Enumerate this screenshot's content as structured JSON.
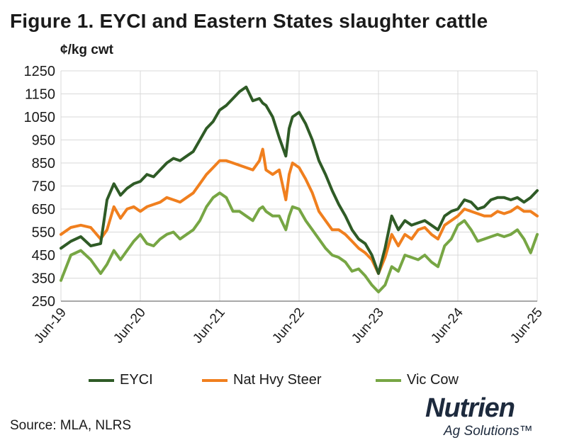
{
  "title": "Figure 1. EYCI and Eastern States slaughter cattle",
  "unit_label": "¢/kg cwt",
  "source": "Source:  MLA, NLRS",
  "logo": {
    "name": "Nutrien",
    "subtitle": "Ag Solutions™"
  },
  "colors": {
    "EYCI": "#2f5b26",
    "Nat Hvy Steer": "#f07f1e",
    "Vic Cow": "#77a644",
    "grid": "#d9d9d9",
    "axis": "#8c8c8c"
  },
  "chart_data": {
    "type": "line",
    "title": "Figure 1. EYCI and Eastern States slaughter cattle",
    "ylabel": "¢/kg cwt",
    "xlabel": "",
    "ylim": [
      250,
      1250
    ],
    "yticks": [
      250,
      350,
      450,
      550,
      650,
      750,
      850,
      950,
      1050,
      1150,
      1250
    ],
    "xlim": [
      2019.5,
      2025.5
    ],
    "xticks": [
      {
        "x": 2019.5,
        "label": "Jun-19"
      },
      {
        "x": 2020.5,
        "label": "Jun-20"
      },
      {
        "x": 2021.5,
        "label": "Jun-21"
      },
      {
        "x": 2022.5,
        "label": "Jun-22"
      },
      {
        "x": 2023.5,
        "label": "Jun-23"
      },
      {
        "x": 2024.5,
        "label": "Jun-24"
      },
      {
        "x": 2025.5,
        "label": "Jun-25"
      }
    ],
    "grid": true,
    "legend_position": "bottom",
    "series": [
      {
        "name": "EYCI",
        "x": [
          2019.5,
          2019.625,
          2019.75,
          2019.875,
          2020.0,
          2020.08,
          2020.167,
          2020.25,
          2020.333,
          2020.417,
          2020.5,
          2020.583,
          2020.667,
          2020.75,
          2020.833,
          2020.917,
          2021.0,
          2021.083,
          2021.167,
          2021.25,
          2021.333,
          2021.417,
          2021.5,
          2021.583,
          2021.667,
          2021.75,
          2021.833,
          2021.917,
          2022.0,
          2022.042,
          2022.083,
          2022.167,
          2022.25,
          2022.333,
          2022.375,
          2022.417,
          2022.5,
          2022.583,
          2022.667,
          2022.75,
          2022.833,
          2022.917,
          2023.0,
          2023.083,
          2023.167,
          2023.25,
          2023.333,
          2023.417,
          2023.5,
          2023.583,
          2023.667,
          2023.75,
          2023.833,
          2023.917,
          2024.0,
          2024.083,
          2024.167,
          2024.25,
          2024.333,
          2024.417,
          2024.5,
          2024.583,
          2024.667,
          2024.75,
          2024.833,
          2024.917,
          2025.0,
          2025.083,
          2025.167,
          2025.25,
          2025.333,
          2025.417,
          2025.5
        ],
        "values": [
          480,
          510,
          530,
          490,
          500,
          690,
          760,
          710,
          740,
          760,
          770,
          800,
          790,
          820,
          850,
          870,
          860,
          880,
          900,
          950,
          1000,
          1030,
          1080,
          1100,
          1130,
          1160,
          1180,
          1120,
          1130,
          1110,
          1100,
          1050,
          960,
          880,
          1000,
          1050,
          1070,
          1020,
          950,
          860,
          800,
          730,
          670,
          620,
          560,
          520,
          500,
          450,
          370,
          480,
          620,
          560,
          600,
          580,
          590,
          600,
          580,
          560,
          620,
          640,
          650,
          690,
          680,
          650,
          660,
          690,
          700,
          700,
          690,
          700,
          680,
          700,
          730
        ]
      },
      {
        "name": "Nat Hvy Steer",
        "x": [
          2019.5,
          2019.625,
          2019.75,
          2019.875,
          2020.0,
          2020.08,
          2020.167,
          2020.25,
          2020.333,
          2020.417,
          2020.5,
          2020.583,
          2020.667,
          2020.75,
          2020.833,
          2020.917,
          2021.0,
          2021.083,
          2021.167,
          2021.25,
          2021.333,
          2021.417,
          2021.5,
          2021.583,
          2021.667,
          2021.75,
          2021.833,
          2021.917,
          2022.0,
          2022.042,
          2022.083,
          2022.167,
          2022.25,
          2022.333,
          2022.375,
          2022.417,
          2022.5,
          2022.583,
          2022.667,
          2022.75,
          2022.833,
          2022.917,
          2023.0,
          2023.083,
          2023.167,
          2023.25,
          2023.333,
          2023.417,
          2023.5,
          2023.583,
          2023.667,
          2023.75,
          2023.833,
          2023.917,
          2024.0,
          2024.083,
          2024.167,
          2024.25,
          2024.333,
          2024.417,
          2024.5,
          2024.583,
          2024.667,
          2024.75,
          2024.833,
          2024.917,
          2025.0,
          2025.083,
          2025.167,
          2025.25,
          2025.333,
          2025.417,
          2025.5
        ],
        "values": [
          540,
          570,
          580,
          570,
          520,
          560,
          660,
          610,
          650,
          660,
          640,
          660,
          670,
          680,
          700,
          690,
          680,
          700,
          720,
          760,
          800,
          830,
          860,
          860,
          850,
          840,
          830,
          820,
          860,
          910,
          820,
          800,
          820,
          690,
          800,
          850,
          830,
          780,
          720,
          640,
          600,
          560,
          560,
          540,
          510,
          480,
          460,
          430,
          370,
          440,
          540,
          490,
          540,
          520,
          560,
          570,
          540,
          520,
          580,
          600,
          620,
          650,
          640,
          630,
          620,
          620,
          640,
          630,
          640,
          660,
          640,
          640,
          620
        ]
      },
      {
        "name": "Vic Cow",
        "x": [
          2019.5,
          2019.625,
          2019.75,
          2019.875,
          2020.0,
          2020.08,
          2020.167,
          2020.25,
          2020.333,
          2020.417,
          2020.5,
          2020.583,
          2020.667,
          2020.75,
          2020.833,
          2020.917,
          2021.0,
          2021.083,
          2021.167,
          2021.25,
          2021.333,
          2021.417,
          2021.5,
          2021.583,
          2021.667,
          2021.75,
          2021.833,
          2021.917,
          2022.0,
          2022.042,
          2022.083,
          2022.167,
          2022.25,
          2022.333,
          2022.375,
          2022.417,
          2022.5,
          2022.583,
          2022.667,
          2022.75,
          2022.833,
          2022.917,
          2023.0,
          2023.083,
          2023.167,
          2023.25,
          2023.333,
          2023.417,
          2023.5,
          2023.583,
          2023.667,
          2023.75,
          2023.833,
          2023.917,
          2024.0,
          2024.083,
          2024.167,
          2024.25,
          2024.333,
          2024.417,
          2024.5,
          2024.583,
          2024.667,
          2024.75,
          2024.833,
          2024.917,
          2025.0,
          2025.083,
          2025.167,
          2025.25,
          2025.333,
          2025.417,
          2025.5
        ],
        "values": [
          340,
          450,
          470,
          430,
          370,
          410,
          470,
          430,
          470,
          510,
          540,
          500,
          490,
          520,
          540,
          550,
          520,
          540,
          560,
          600,
          660,
          700,
          720,
          700,
          640,
          640,
          620,
          600,
          650,
          660,
          640,
          620,
          620,
          560,
          620,
          660,
          650,
          600,
          560,
          520,
          480,
          450,
          440,
          420,
          380,
          390,
          360,
          320,
          290,
          320,
          400,
          380,
          450,
          440,
          430,
          450,
          420,
          400,
          490,
          520,
          580,
          600,
          560,
          510,
          520,
          530,
          540,
          530,
          540,
          560,
          520,
          460,
          540
        ]
      }
    ]
  }
}
